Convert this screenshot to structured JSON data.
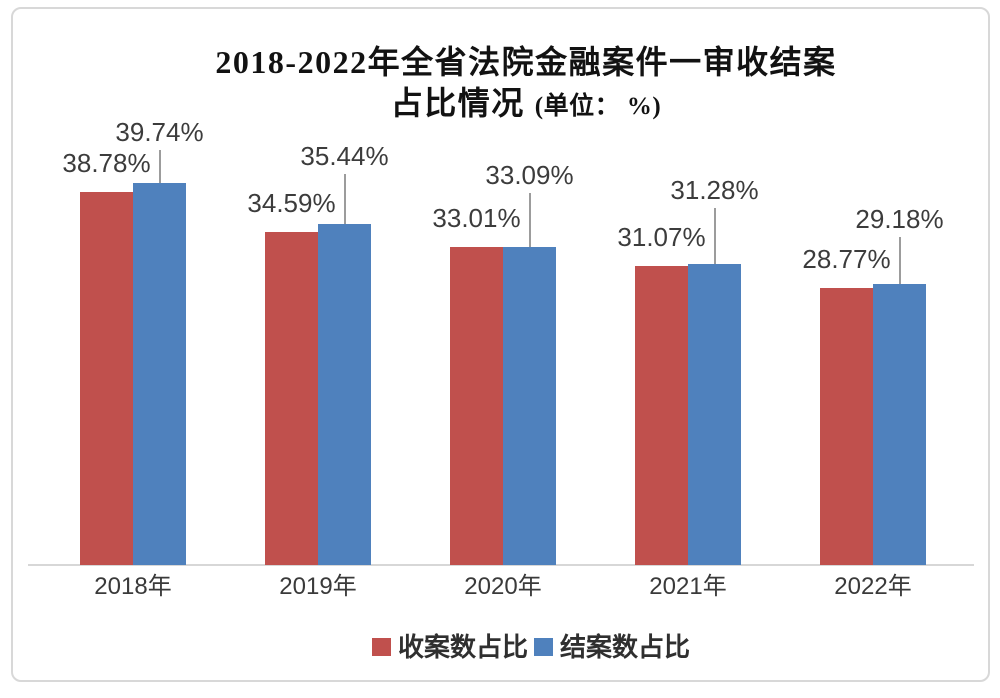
{
  "title": {
    "line1": "2018-2022年全省法院金融案件一审收结案",
    "line2": "占比情况",
    "unit": "(单位： %)"
  },
  "chart_data": {
    "type": "bar",
    "title": "2018-2022年全省法院金融案件一审收结案占比情况",
    "unit_label": "(单位： %)",
    "categories": [
      "2018年",
      "2019年",
      "2020年",
      "2021年",
      "2022年"
    ],
    "series": [
      {
        "id": "accepted",
        "name": "收案数占比",
        "color": "#c0504d",
        "values": [
          38.78,
          34.59,
          33.01,
          31.07,
          28.77
        ]
      },
      {
        "id": "closed",
        "name": "结案数占比",
        "color": "#4f81bd",
        "values": [
          39.74,
          35.44,
          33.09,
          31.28,
          29.18
        ]
      }
    ],
    "value_label_format": "0.00%",
    "xlabel": "",
    "ylabel": "",
    "ylim": [
      0,
      43
    ],
    "grid": false,
    "legend_position": "bottom",
    "data_labels": true
  }
}
